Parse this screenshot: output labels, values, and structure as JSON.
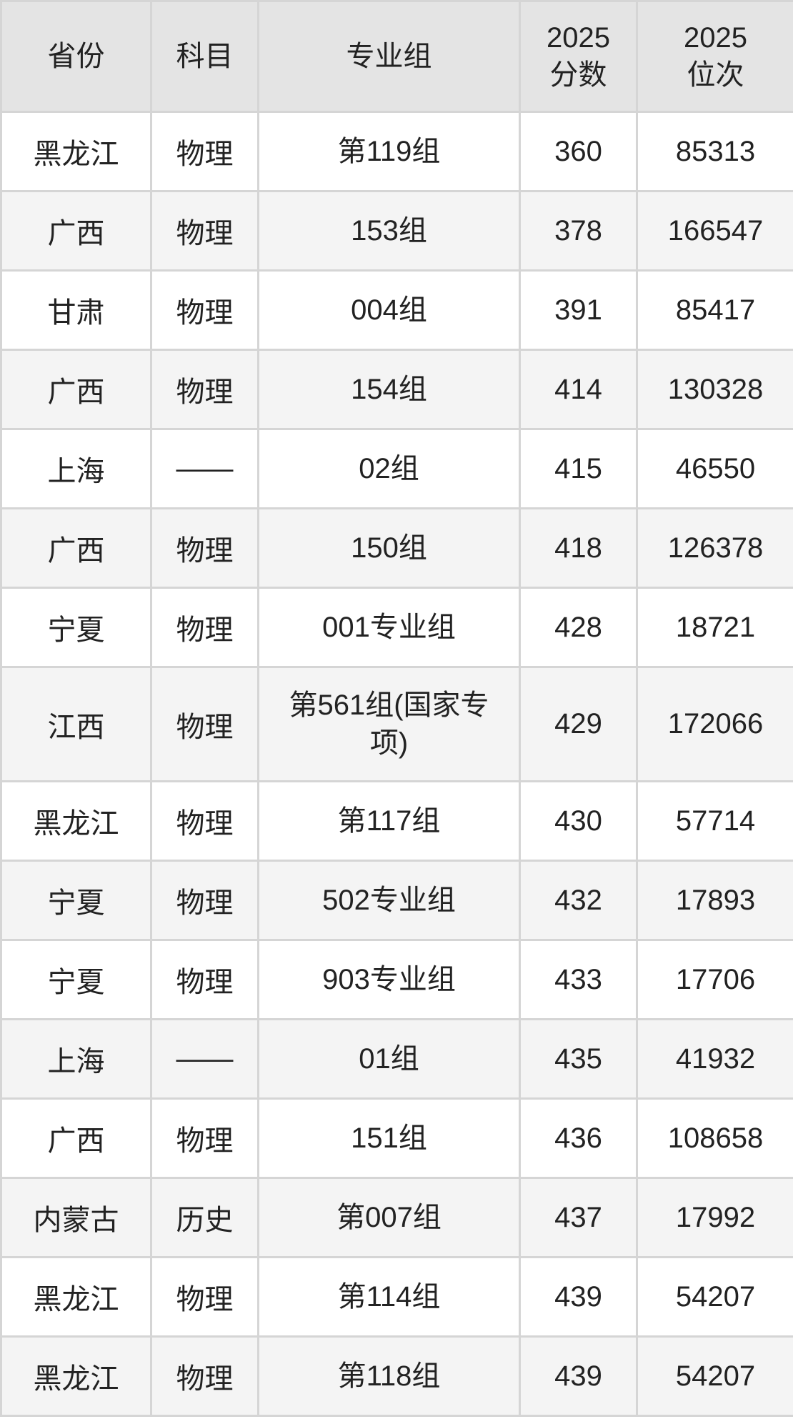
{
  "colors": {
    "header_bg": "#e4e4e4",
    "row_bg": "#ffffff",
    "row_alt_bg": "#f4f4f4",
    "border": "#d5d5d5",
    "text": "#222222"
  },
  "chart_data": {
    "type": "table",
    "title": "",
    "columns": [
      "省份",
      "科目",
      "专业组",
      "2025\n分数",
      "2025\n位次"
    ],
    "rows": [
      {
        "province": "黑龙江",
        "subject": "物理",
        "group": "第119组",
        "score_2025": "360",
        "rank_2025": "85313"
      },
      {
        "province": "广西",
        "subject": "物理",
        "group": "153组",
        "score_2025": "378",
        "rank_2025": "166547"
      },
      {
        "province": "甘肃",
        "subject": "物理",
        "group": "004组",
        "score_2025": "391",
        "rank_2025": "85417"
      },
      {
        "province": "广西",
        "subject": "物理",
        "group": "154组",
        "score_2025": "414",
        "rank_2025": "130328"
      },
      {
        "province": "上海",
        "subject": "——",
        "group": "02组",
        "score_2025": "415",
        "rank_2025": "46550"
      },
      {
        "province": "广西",
        "subject": "物理",
        "group": "150组",
        "score_2025": "418",
        "rank_2025": "126378"
      },
      {
        "province": "宁夏",
        "subject": "物理",
        "group": "001专业组",
        "score_2025": "428",
        "rank_2025": "18721"
      },
      {
        "province": "江西",
        "subject": "物理",
        "group": "第561组(国家专项)",
        "score_2025": "429",
        "rank_2025": "172066"
      },
      {
        "province": "黑龙江",
        "subject": "物理",
        "group": "第117组",
        "score_2025": "430",
        "rank_2025": "57714"
      },
      {
        "province": "宁夏",
        "subject": "物理",
        "group": "502专业组",
        "score_2025": "432",
        "rank_2025": "17893"
      },
      {
        "province": "宁夏",
        "subject": "物理",
        "group": "903专业组",
        "score_2025": "433",
        "rank_2025": "17706"
      },
      {
        "province": "上海",
        "subject": "——",
        "group": "01组",
        "score_2025": "435",
        "rank_2025": "41932"
      },
      {
        "province": "广西",
        "subject": "物理",
        "group": "151组",
        "score_2025": "436",
        "rank_2025": "108658"
      },
      {
        "province": "内蒙古",
        "subject": "历史",
        "group": "第007组",
        "score_2025": "437",
        "rank_2025": "17992"
      },
      {
        "province": "黑龙江",
        "subject": "物理",
        "group": "第114组",
        "score_2025": "439",
        "rank_2025": "54207"
      },
      {
        "province": "黑龙江",
        "subject": "物理",
        "group": "第118组",
        "score_2025": "439",
        "rank_2025": "54207"
      }
    ]
  }
}
